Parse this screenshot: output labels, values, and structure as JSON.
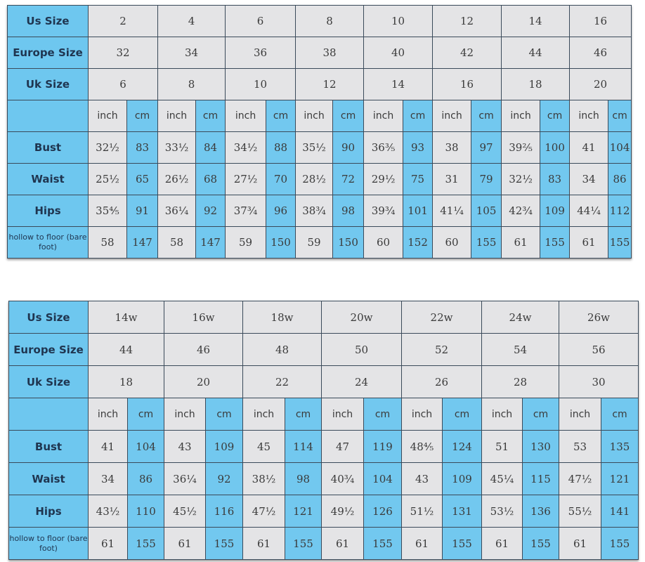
{
  "tables": [
    {
      "row_labels": {
        "us": "Us Size",
        "eu": "Europe Size",
        "uk": "Uk Size",
        "bust": "Bust",
        "waist": "Waist",
        "hips": "Hips",
        "hollow": "hollow to floor (bare foot)"
      },
      "unit_labels": {
        "inch": "inch",
        "cm": "cm"
      },
      "us": [
        "2",
        "4",
        "6",
        "8",
        "10",
        "12",
        "14",
        "16"
      ],
      "eu": [
        "32",
        "34",
        "36",
        "38",
        "40",
        "42",
        "44",
        "46"
      ],
      "uk": [
        "6",
        "8",
        "10",
        "12",
        "14",
        "16",
        "18",
        "20"
      ],
      "bust": [
        [
          "32½",
          "83"
        ],
        [
          "33½",
          "84"
        ],
        [
          "34½",
          "88"
        ],
        [
          "35½",
          "90"
        ],
        [
          "36⅗",
          "93"
        ],
        [
          "38",
          "97"
        ],
        [
          "39⅖",
          "100"
        ],
        [
          "41",
          "104"
        ]
      ],
      "waist": [
        [
          "25½",
          "65"
        ],
        [
          "26½",
          "68"
        ],
        [
          "27½",
          "70"
        ],
        [
          "28½",
          "72"
        ],
        [
          "29½",
          "75"
        ],
        [
          "31",
          "79"
        ],
        [
          "32½",
          "83"
        ],
        [
          "34",
          "86"
        ]
      ],
      "hips": [
        [
          "35⅘",
          "91"
        ],
        [
          "36¼",
          "92"
        ],
        [
          "37¾",
          "96"
        ],
        [
          "38¾",
          "98"
        ],
        [
          "39¾",
          "101"
        ],
        [
          "41¼",
          "105"
        ],
        [
          "42¾",
          "109"
        ],
        [
          "44¼",
          "112"
        ]
      ],
      "hollow": [
        [
          "58",
          "147"
        ],
        [
          "58",
          "147"
        ],
        [
          "59",
          "150"
        ],
        [
          "59",
          "150"
        ],
        [
          "60",
          "152"
        ],
        [
          "60",
          "155"
        ],
        [
          "61",
          "155"
        ],
        [
          "61",
          "155"
        ]
      ]
    },
    {
      "row_labels": {
        "us": "Us Size",
        "eu": "Europe Size",
        "uk": "Uk Size",
        "bust": "Bust",
        "waist": "Waist",
        "hips": "Hips",
        "hollow": "hollow to floor (bare foot)"
      },
      "unit_labels": {
        "inch": "inch",
        "cm": "cm"
      },
      "us": [
        "14w",
        "16w",
        "18w",
        "20w",
        "22w",
        "24w",
        "26w"
      ],
      "eu": [
        "44",
        "46",
        "48",
        "50",
        "52",
        "54",
        "56"
      ],
      "uk": [
        "18",
        "20",
        "22",
        "24",
        "26",
        "28",
        "30"
      ],
      "bust": [
        [
          "41",
          "104"
        ],
        [
          "43",
          "109"
        ],
        [
          "45",
          "114"
        ],
        [
          "47",
          "119"
        ],
        [
          "48⅘",
          "124"
        ],
        [
          "51",
          "130"
        ],
        [
          "53",
          "135"
        ]
      ],
      "waist": [
        [
          "34",
          "86"
        ],
        [
          "36¼",
          "92"
        ],
        [
          "38½",
          "98"
        ],
        [
          "40¾",
          "104"
        ],
        [
          "43",
          "109"
        ],
        [
          "45¼",
          "115"
        ],
        [
          "47½",
          "121"
        ]
      ],
      "hips": [
        [
          "43½",
          "110"
        ],
        [
          "45½",
          "116"
        ],
        [
          "47½",
          "121"
        ],
        [
          "49½",
          "126"
        ],
        [
          "51½",
          "131"
        ],
        [
          "53½",
          "136"
        ],
        [
          "55½",
          "141"
        ]
      ],
      "hollow": [
        [
          "61",
          "155"
        ],
        [
          "61",
          "155"
        ],
        [
          "61",
          "155"
        ],
        [
          "61",
          "155"
        ],
        [
          "61",
          "155"
        ],
        [
          "61",
          "155"
        ],
        [
          "61",
          "155"
        ]
      ]
    }
  ],
  "colors": {
    "blue": "#72c8ef",
    "gray": "#e4e4e6",
    "border": "#3a4a5a"
  }
}
